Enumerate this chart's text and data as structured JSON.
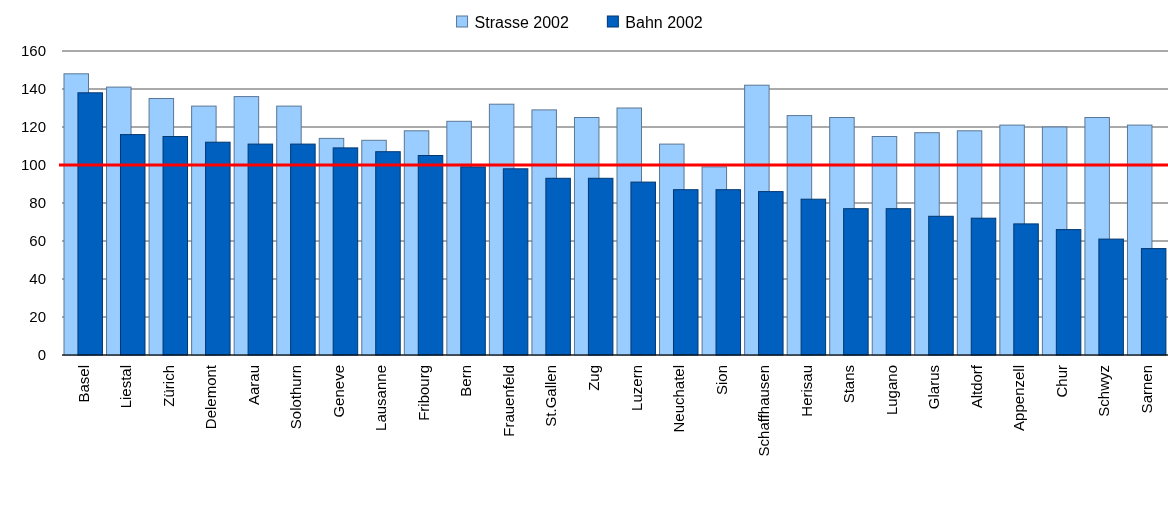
{
  "chart_data": {
    "type": "bar",
    "categories": [
      "Basel",
      "Liestal",
      "Zürich",
      "Delemont",
      "Aarau",
      "Solothurn",
      "Geneve",
      "Lausanne",
      "Fribourg",
      "Bern",
      "Frauenfeld",
      "St.Gallen",
      "Zug",
      "Luzern",
      "Neuchatel",
      "Sion",
      "Schaffhausen",
      "Herisau",
      "Stans",
      "Lugano",
      "Glarus",
      "Altdorf",
      "Appenzell",
      "Chur",
      "Schwyz",
      "Sarnen"
    ],
    "series": [
      {
        "name": "Strasse 2002",
        "color": "#99ccff",
        "values": [
          148,
          141,
          135,
          131,
          136,
          131,
          114,
          113,
          118,
          123,
          132,
          129,
          125,
          130,
          111,
          99,
          142,
          126,
          125,
          115,
          117,
          118,
          121,
          120,
          125,
          121
        ]
      },
      {
        "name": "Bahn 2002",
        "color": "#0060c0",
        "values": [
          138,
          116,
          115,
          112,
          111,
          111,
          109,
          107,
          105,
          99,
          98,
          93,
          93,
          91,
          87,
          87,
          86,
          82,
          77,
          77,
          73,
          72,
          69,
          66,
          61,
          56
        ]
      }
    ],
    "ylim": [
      0,
      160
    ],
    "yticks": [
      0,
      20,
      40,
      60,
      80,
      100,
      120,
      140,
      160
    ],
    "grid": "y",
    "legend": "top",
    "ref_lines": [
      {
        "axis": "y",
        "value": 100,
        "color": "#ff0000"
      }
    ]
  }
}
